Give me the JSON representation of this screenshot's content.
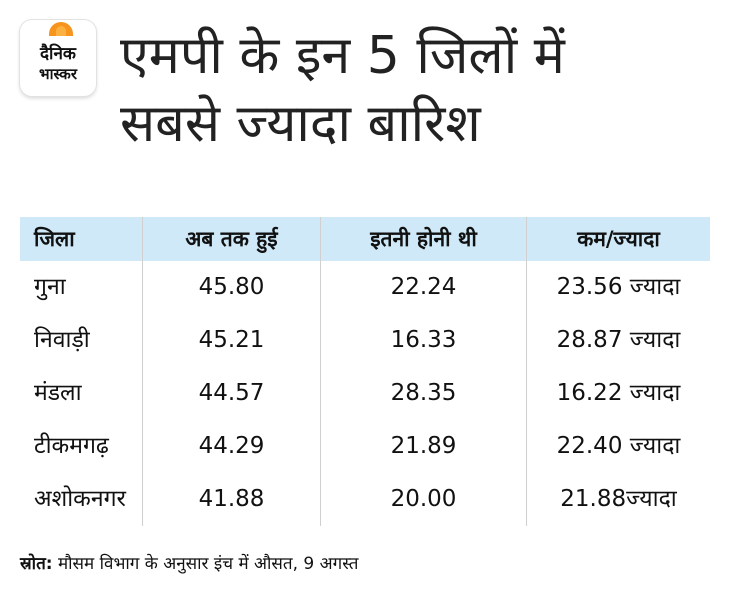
{
  "logo": {
    "line1": "दैनिक",
    "line2": "भास्कर",
    "colors": {
      "sun": "#f7941d",
      "sun_inner": "#fbb040"
    }
  },
  "headline": {
    "line1": "एमपी के इन 5 जिलों में",
    "line2": "सबसे ज्यादा बारिश"
  },
  "table": {
    "header_color": "#cfe9f8",
    "headers": [
      "जिला",
      "अब तक हुई",
      "इतनी होनी थी",
      "कम/ज्यादा"
    ],
    "rows": [
      [
        "गुना",
        "45.80",
        "22.24",
        "23.56 ज्यादा"
      ],
      [
        "निवाड़ी",
        "45.21",
        "16.33",
        "28.87 ज्यादा"
      ],
      [
        "मंडला",
        "44.57",
        "28.35",
        "16.22 ज्यादा"
      ],
      [
        "टीकमगढ़",
        "44.29",
        "21.89",
        "22.40 ज्यादा"
      ],
      [
        "अशोकनगर",
        "41.88",
        "20.00",
        "21.88ज्यादा"
      ]
    ]
  },
  "source": {
    "label": "स्रोत:",
    "text": " मौसम विभाग के अनुसार इंच में औसत, 9 अगस्त"
  }
}
